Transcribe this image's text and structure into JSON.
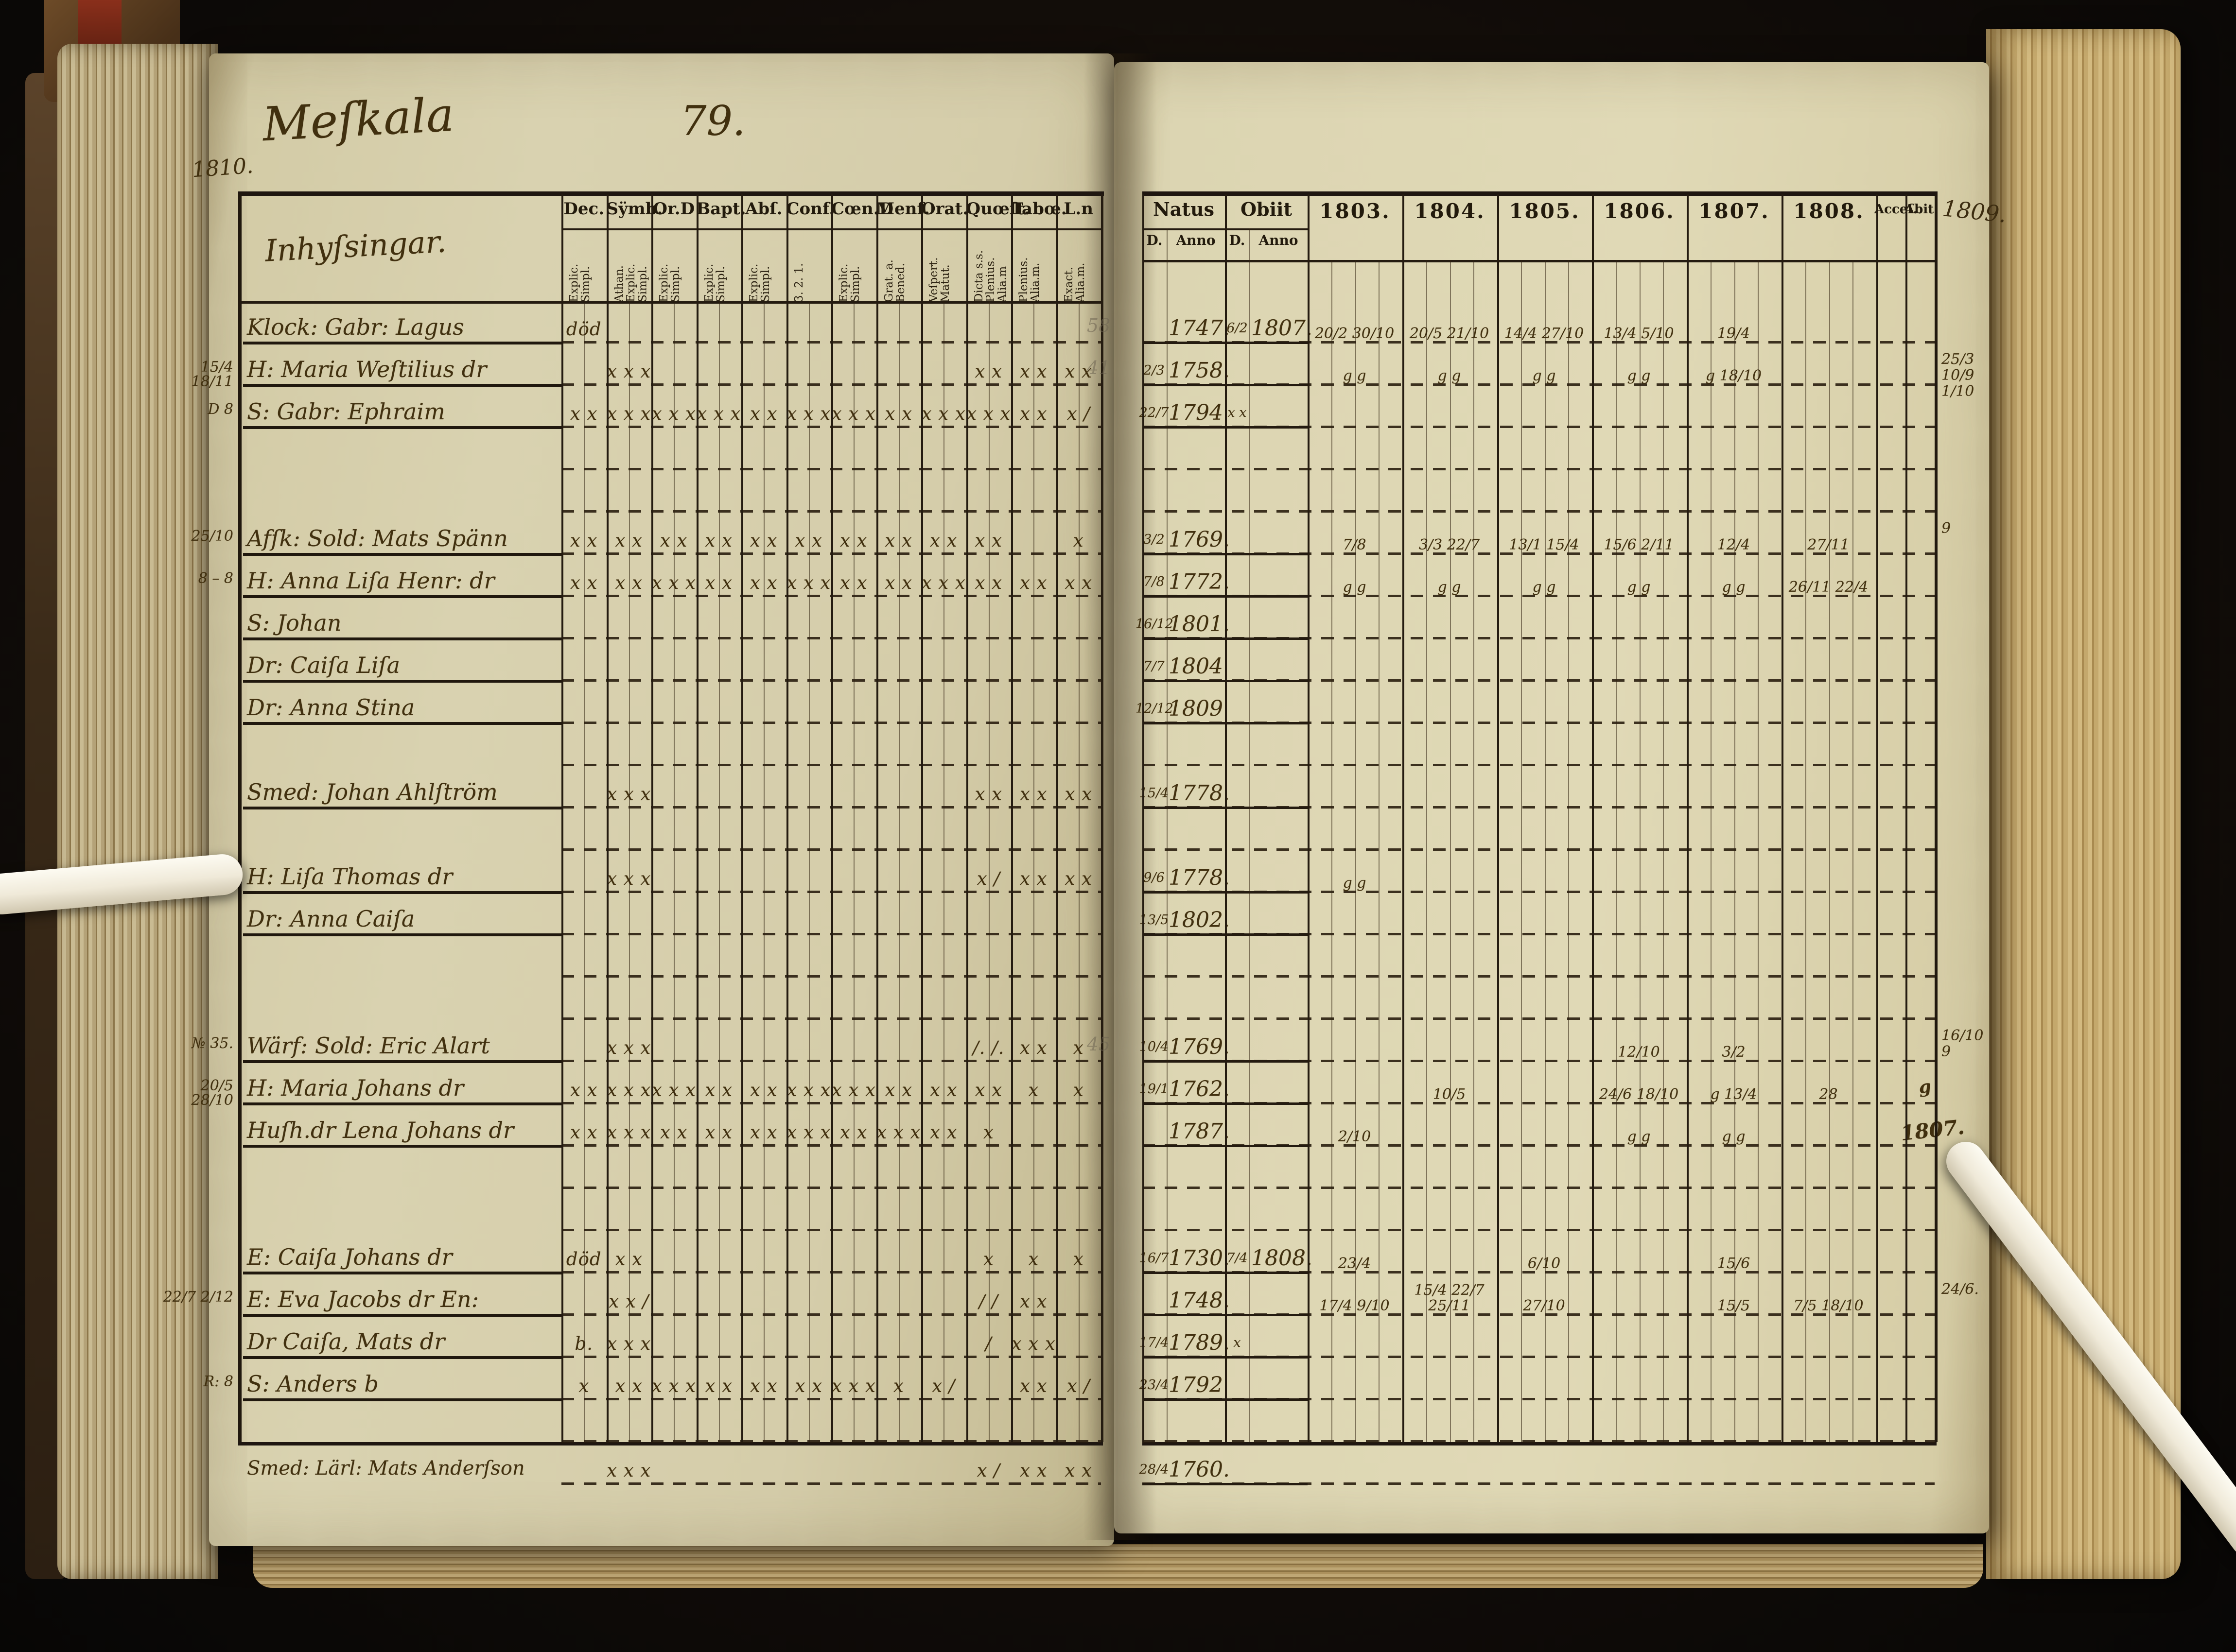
{
  "colors": {
    "background": "#120d09",
    "page": "#d9d2b0",
    "ink": "#41300f",
    "grid_line": "#241b10",
    "page_edge": "#c9ae74",
    "stick": "#f3efe3"
  },
  "left_page": {
    "title": "Meſkala",
    "page_number": "79.",
    "margin_year": "1810.",
    "names_header": "Inhyſsingar.",
    "columns": [
      {
        "key": "dec",
        "label": "Dec.",
        "sub": "Explic. Simpl."
      },
      {
        "key": "symb",
        "label": "Sÿmb.",
        "sub": "Athan. Explic. Simpl."
      },
      {
        "key": "ord",
        "label": "Or.D",
        "sub": "Explic. Simpl."
      },
      {
        "key": "bapt",
        "label": "Bapt.",
        "sub": "Explic. Simpl."
      },
      {
        "key": "abs",
        "label": "Abſ.",
        "sub": "Explic. Simpl."
      },
      {
        "key": "conf",
        "label": "Conf.",
        "sub": "3. 2. 1."
      },
      {
        "key": "coen",
        "label": "Cœn.D",
        "sub": "Explic. Simpl."
      },
      {
        "key": "mens",
        "label": "Menſ.",
        "sub": "Grat. a. Bened."
      },
      {
        "key": "orat",
        "label": "Orat.",
        "sub": "Veſpert. Matut."
      },
      {
        "key": "quoest",
        "label": "Quœſt.",
        "sub": "Dicta s.s. Plenius. Alia.m"
      },
      {
        "key": "taboe",
        "label": "Tabœ.",
        "sub": "Plenius. Alia.m."
      },
      {
        "key": "ln",
        "label": "L.n",
        "sub": "Exact. Alia.m."
      }
    ]
  },
  "right_page": {
    "natus_label": "Natus",
    "obiit_label": "Obiit",
    "d_label": "D.",
    "anno_label": "Anno",
    "years": [
      "1803.",
      "1804.",
      "1805.",
      "1806.",
      "1807.",
      "1808."
    ],
    "acces_label": "Acceſ.",
    "abiit_label": "Abit.",
    "margin_year": "1809."
  },
  "rows": [
    {
      "name": "Klock: Gabr: Lagus",
      "marks": {
        "dec": "död"
      },
      "natus_anno": "1747.",
      "obiit_d": "6/2",
      "obiit_anno": "1807.",
      "years": {
        "1803": "20/2 30/10",
        "1804": "20/5 21/10",
        "1805": "14/4 27/10",
        "1806": "13/4 5/10",
        "1807": "19/4"
      },
      "gutter": "58"
    },
    {
      "name": "H: Maria Weſtilius dr",
      "margin": "15/4 18/11",
      "marks": {
        "symb": "x x x",
        "quoest": "x x",
        "taboe": "x x",
        "ln": "x x"
      },
      "natus_d": "2/3",
      "natus_anno": "1758.",
      "years": {
        "1803": "g g",
        "1804": "g g",
        "1805": "g g",
        "1806": "g g",
        "1807": "g 18/10"
      },
      "gutter": "41",
      "edge_note": "25/3 10/9 1/10"
    },
    {
      "name": "S: Gabr: Ephraim",
      "margin": "D 8",
      "marks": {
        "dec": "x x",
        "symb": "x x x",
        "ord": "x x x",
        "bapt": "x x x",
        "abs": "x x",
        "conf": "x x x",
        "coen": "x x x",
        "mens": "x x",
        "orat": "x x x",
        "quoest": "x x x",
        "taboe": "x x",
        "ln": "x /"
      },
      "natus_d": "22/7",
      "natus_anno": "1794",
      "obiit_d": "x x"
    },
    {
      "blank": true
    },
    {
      "blank": true
    },
    {
      "name": "Afſk: Sold: Mats Spänn",
      "margin": "25/10",
      "marks": {
        "dec": "x x",
        "symb": "x x",
        "ord": "x x",
        "bapt": "x x",
        "abs": "x x",
        "conf": "x x",
        "coen": "x x",
        "mens": "x x",
        "orat": "x x",
        "quoest": "x x",
        "ln": "x"
      },
      "natus_d": "3/2",
      "natus_anno": "1769.",
      "years": {
        "1803": "7/8",
        "1804": "3/3 22/7",
        "1805": "13/1 15/4",
        "1806": "15/6 2/11",
        "1807": "12/4",
        "1808": "27/11"
      },
      "edge_note": "9"
    },
    {
      "name": "H: Anna Liſa Henr: dr",
      "margin": "8 – 8",
      "marks": {
        "dec": "x x",
        "symb": "x x",
        "ord": "x x x",
        "bapt": "x x",
        "abs": "x x",
        "conf": "x x x",
        "coen": "x x",
        "mens": "x x",
        "orat": "x x x",
        "quoest": "x x",
        "taboe": "x x",
        "ln": "x x"
      },
      "natus_d": "7/8",
      "natus_anno": "1772.",
      "years": {
        "1803": "g g",
        "1804": "g g",
        "1805": "g g",
        "1806": "g g",
        "1807": "g g",
        "1808": "26/11 22/4"
      }
    },
    {
      "name": "S: Johan",
      "natus_d": "16/12",
      "natus_anno": "1801."
    },
    {
      "name": "Dr: Caiſa Liſa",
      "natus_d": "7/7",
      "natus_anno": "1804"
    },
    {
      "name": "Dr: Anna Stina",
      "natus_d": "12/12",
      "natus_anno": "1809"
    },
    {
      "blank": true
    },
    {
      "name": "Smed: Johan Ahlſtröm",
      "marks": {
        "symb": "x x x",
        "quoest": "x x",
        "taboe": "x x",
        "ln": "x x"
      },
      "natus_d": "15/4",
      "natus_anno": "1778."
    },
    {
      "blank": true
    },
    {
      "name": "H: Liſa Thomas dr",
      "marks": {
        "symb": "x x x",
        "quoest": "x /",
        "taboe": "x x",
        "ln": "x x"
      },
      "natus_d": "9/6",
      "natus_anno": "1778.",
      "years": {
        "1803": "g g"
      }
    },
    {
      "name": "Dr: Anna Caiſa",
      "natus_d": "13/5",
      "natus_anno": "1802."
    },
    {
      "blank": true
    },
    {
      "blank": true
    },
    {
      "name": "Wärf: Sold: Eric Alart",
      "margin": "№ 35.",
      "marks": {
        "symb": "x x x",
        "quoest": "/. /.",
        "taboe": "x x",
        "ln": "x"
      },
      "natus_d": "10/4",
      "natus_anno": "1769.",
      "years": {
        "1806": "12/10",
        "1807": "3/2"
      },
      "gutter": "45",
      "edge_note": "16/10 9"
    },
    {
      "name": "H: Maria Johans dr",
      "margin": "20/5 28/10",
      "marks": {
        "dec": "x x",
        "symb": "x x x",
        "ord": "x x x",
        "bapt": "x x",
        "abs": "x x",
        "conf": "x x x",
        "coen": "x x x",
        "mens": "x x",
        "orat": "x x",
        "quoest": "x x",
        "taboe": "x",
        "ln": "x"
      },
      "natus_d": "19/1",
      "natus_anno": "1762.",
      "years": {
        "1804": "10/5",
        "1806": "24/6 18/10",
        "1807": "g 13/4",
        "1808": "28"
      },
      "abiit": "g"
    },
    {
      "name": "Huſh.dr Lena Johans dr",
      "marks": {
        "dec": "x x",
        "symb": "x x x",
        "ord": "x x",
        "bapt": "x x",
        "abs": "x x",
        "conf": "x x x",
        "coen": "x x",
        "mens": "x x x",
        "orat": "x x",
        "quoest": "x"
      },
      "natus_anno": "1787.",
      "years": {
        "1803": "2/10",
        "1806": "g g",
        "1807": "g g"
      },
      "abiit": "1807."
    },
    {
      "blank": true
    },
    {
      "blank": true
    },
    {
      "name": "E: Caiſa Johans dr",
      "marks": {
        "dec": "död",
        "symb": "x x",
        "quoest": "x",
        "taboe": "x",
        "ln": "x"
      },
      "natus_d": "16/7",
      "natus_anno": "1730.",
      "obiit_d": "7/4",
      "obiit_anno": "1808.",
      "years": {
        "1803": "23/4",
        "1805": "6/10",
        "1807": "15/6"
      }
    },
    {
      "name": "E: Eva Jacobs dr En:",
      "margin": "22/7 2/12",
      "marks": {
        "symb": "x x /",
        "quoest": "/ /",
        "taboe": "x x"
      },
      "natus_anno": "1748.",
      "years": {
        "1803": "17/4 9/10",
        "1804": "15/4 22/7 25/11",
        "1805": "27/10",
        "1807": "15/5",
        "1808": "7/5 18/10"
      },
      "edge_note": "24/6."
    },
    {
      "name": "Dr Caiſa, Mats dr",
      "marks": {
        "dec": "b.",
        "symb": "x x x",
        "quoest": "/",
        "taboe": "x x x"
      },
      "natus_d": "17/4",
      "natus_anno": "1789.",
      "obiit_d": "x"
    },
    {
      "name": "S: Anders b",
      "margin": "R: 8",
      "marks": {
        "dec": "x",
        "symb": "x x",
        "ord": "x x x",
        "bapt": "x x",
        "abs": "x x",
        "conf": "x x",
        "coen": "x x x",
        "mens": "x",
        "orat": "x /",
        "taboe": "x x",
        "ln": "x /"
      },
      "natus_d": "23/4",
      "natus_anno": "1792"
    },
    {
      "blank": true
    },
    {
      "name": "Smed: Lärl: Mats Anderſson",
      "below_border": true,
      "marks": {
        "symb": "x x x",
        "quoest": "x /",
        "taboe": "x x",
        "ln": "x x"
      },
      "natus_d": "28/4",
      "natus_anno": "1760."
    }
  ]
}
